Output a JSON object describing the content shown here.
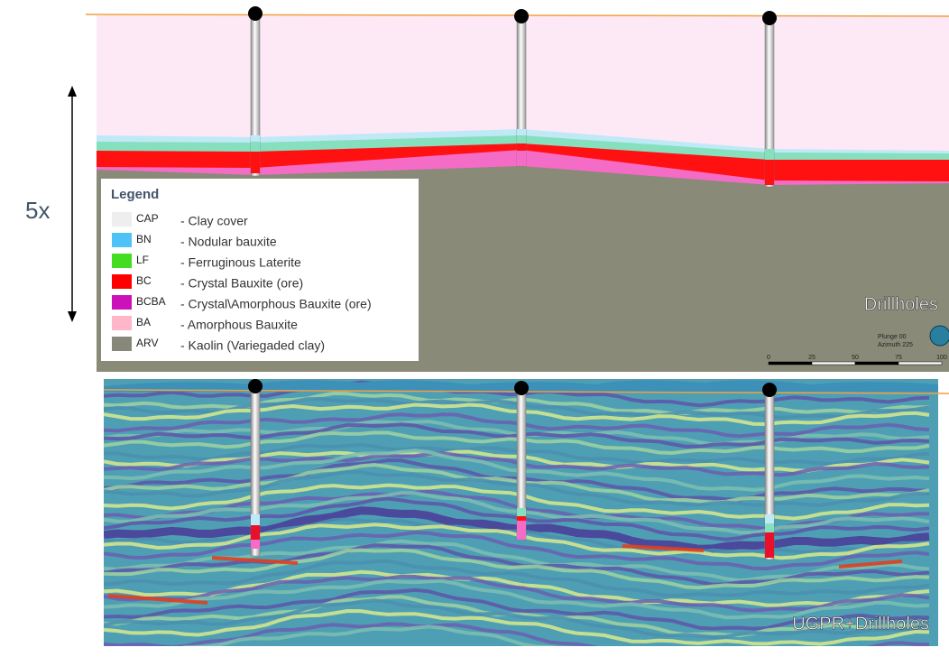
{
  "exaggeration": "5x",
  "legend": {
    "title": "Legend",
    "items": [
      {
        "code": "CAP",
        "description": "- Clay cover"
      },
      {
        "code": "BN",
        "description": "- Nodular bauxite"
      },
      {
        "code": "LF",
        "description": "- Ferruginous Laterite"
      },
      {
        "code": "BC",
        "description": "- Crystal Bauxite (ore)"
      },
      {
        "code": "BCBA",
        "description": "- Crystal\\Amorphous Bauxite (ore)"
      },
      {
        "code": "BA",
        "description": "- Amorphous Bauxite"
      },
      {
        "code": "ARV",
        "description": "- Kaolin (Variegaded clay)"
      }
    ]
  },
  "top_panel": {
    "label": "Drillholes",
    "plunge": "Plunge 00",
    "azimuth": "Azimuth 225",
    "scale": [
      "0",
      "25",
      "50",
      "75",
      "100"
    ]
  },
  "bottom_panel": {
    "label": "UGPR+Drillholes"
  }
}
